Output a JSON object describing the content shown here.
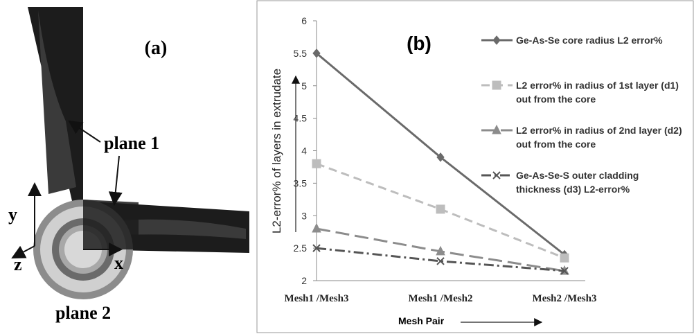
{
  "diagram": {
    "label": "(a)",
    "plane_1": "plane 1",
    "plane_2": "plane 2",
    "axis_y": "y",
    "axis_z": "z",
    "axis_x": "x"
  },
  "chart_data": {
    "type": "line",
    "label": "(b)",
    "x_label": "Mesh Pair",
    "y_label": "L2-error% of layers in extrudate",
    "categories": [
      "Mesh1 /Mesh3",
      "Mesh1 /Mesh2",
      "Mesh2 /Mesh3"
    ],
    "ylim": [
      2,
      6
    ],
    "yticks": [
      2,
      2.5,
      3,
      3.5,
      4,
      4.5,
      5,
      5.5,
      6
    ],
    "grid": false,
    "series": [
      {
        "name": "Ge-As-Se core radius L2 error%",
        "color": "#6a6a6a",
        "dash": "solid",
        "marker": "diamond",
        "values": [
          5.5,
          3.9,
          2.4
        ]
      },
      {
        "name": "L2 error% in radius of 1st layer (d1) out from the core",
        "color": "#bdbdbd",
        "dash": "dashed",
        "marker": "square",
        "values": [
          3.8,
          3.1,
          2.35
        ]
      },
      {
        "name": "L2 error% in radius of 2nd layer (d2) out from the core",
        "color": "#8c8c8c",
        "dash": "longdash",
        "marker": "triangle",
        "values": [
          2.8,
          2.45,
          2.15
        ]
      },
      {
        "name": "Ge-As-Se-S outer cladding thickness (d3) L2-error%",
        "color": "#555555",
        "dash": "dashdot",
        "marker": "x",
        "values": [
          2.5,
          2.3,
          2.15
        ]
      }
    ]
  }
}
